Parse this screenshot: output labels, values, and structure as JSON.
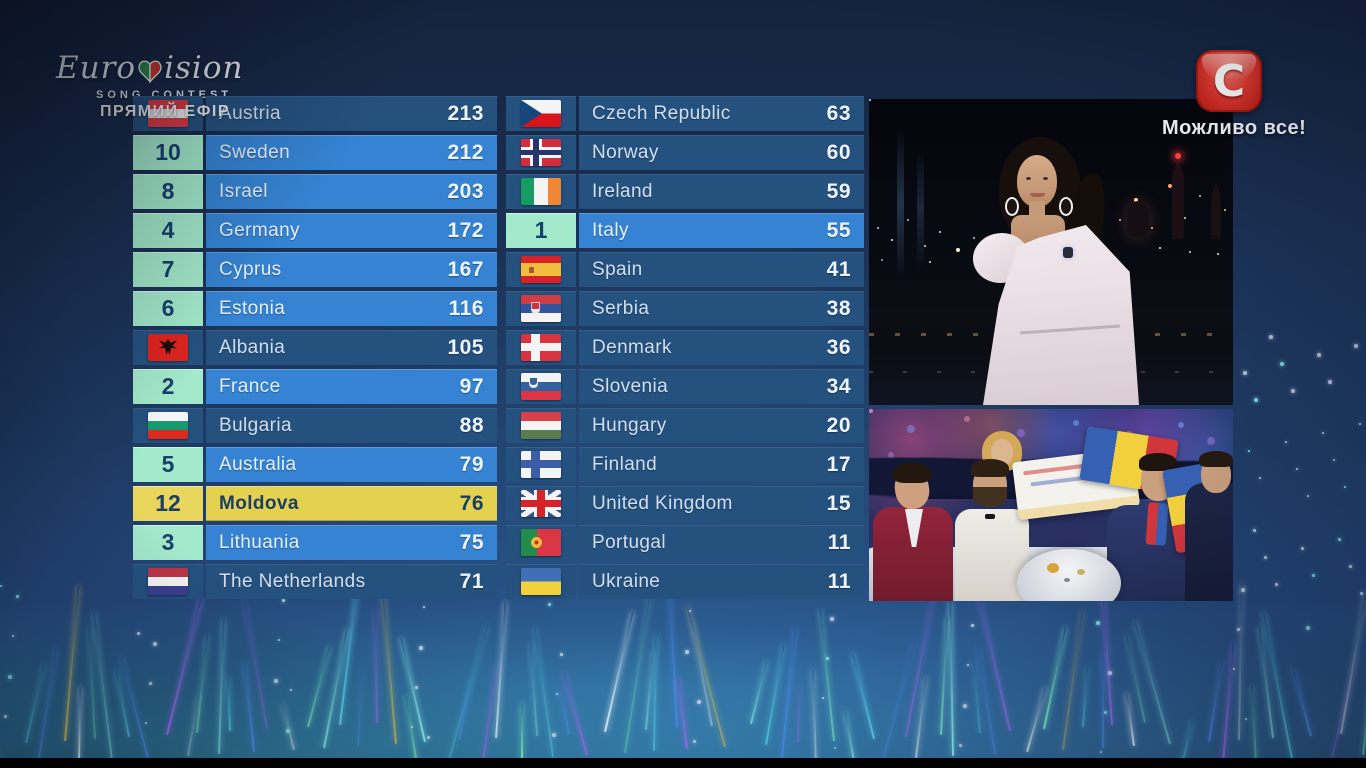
{
  "header": {
    "eurovision": {
      "word_start": "Euro",
      "word_end": "ision",
      "subtitle": "SONG CONTEST"
    },
    "live_label": "ПРЯМИЙ ЕФІР",
    "channel": {
      "logo_letter": "С",
      "tagline": "Можливо все!"
    }
  },
  "scoreboard": {
    "left_column": [
      {
        "country": "Austria",
        "score": "213",
        "flag": "at"
      },
      {
        "country": "Sweden",
        "score": "212",
        "points": "10"
      },
      {
        "country": "Israel",
        "score": "203",
        "points": "8"
      },
      {
        "country": "Germany",
        "score": "172",
        "points": "4"
      },
      {
        "country": "Cyprus",
        "score": "167",
        "points": "7"
      },
      {
        "country": "Estonia",
        "score": "116",
        "points": "6"
      },
      {
        "country": "Albania",
        "score": "105",
        "flag": "al"
      },
      {
        "country": "France",
        "score": "97",
        "points": "2"
      },
      {
        "country": "Bulgaria",
        "score": "88",
        "flag": "bg"
      },
      {
        "country": "Australia",
        "score": "79",
        "points": "5"
      },
      {
        "country": "Moldova",
        "score": "76",
        "points": "12",
        "highlight": "gold"
      },
      {
        "country": "Lithuania",
        "score": "75",
        "points": "3"
      },
      {
        "country": "The Netherlands",
        "score": "71",
        "flag": "nl"
      }
    ],
    "right_column": [
      {
        "country": "Czech Republic",
        "score": "63",
        "flag": "cz"
      },
      {
        "country": "Norway",
        "score": "60",
        "flag": "no"
      },
      {
        "country": "Ireland",
        "score": "59",
        "flag": "ie"
      },
      {
        "country": "Italy",
        "score": "55",
        "points": "1"
      },
      {
        "country": "Spain",
        "score": "41",
        "flag": "es"
      },
      {
        "country": "Serbia",
        "score": "38",
        "flag": "rs"
      },
      {
        "country": "Denmark",
        "score": "36",
        "flag": "dk"
      },
      {
        "country": "Slovenia",
        "score": "34",
        "flag": "si"
      },
      {
        "country": "Hungary",
        "score": "20",
        "flag": "hu"
      },
      {
        "country": "Finland",
        "score": "17",
        "flag": "fi"
      },
      {
        "country": "United Kingdom",
        "score": "15",
        "flag": "gb"
      },
      {
        "country": "Portugal",
        "score": "11",
        "flag": "pt"
      },
      {
        "country": "Ukraine",
        "score": "11",
        "flag": "ua"
      }
    ]
  },
  "colors": {
    "row_dark": "#25517f",
    "row_light": "#3583d2",
    "row_gold": "#e5d150",
    "points_box": "#a3e9cb",
    "points_text": "#17406b",
    "background_navy": "#1a3560",
    "channel_red": "#d42321",
    "heart_left": "#2e8b4a",
    "heart_right": "#d33a2f"
  }
}
